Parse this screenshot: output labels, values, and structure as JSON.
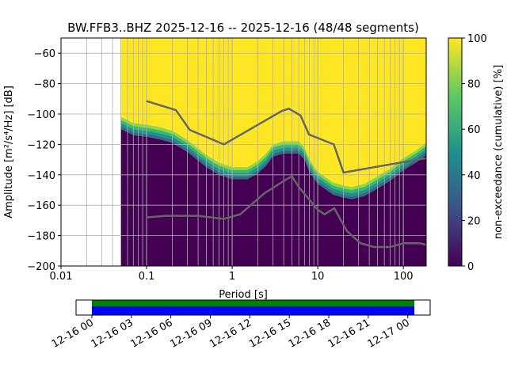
{
  "chart_data": {
    "type": "heatmap",
    "title": "BW.FFB3..BHZ   2025-12-16 -- 2025-12-16  (48/48 segments)",
    "xlabel": "Period [s]",
    "ylabel": "Amplitude [m²/s⁴/Hz] [dB]",
    "xscale": "log",
    "xlim": [
      0.01,
      185
    ],
    "ylim": [
      -200,
      -50
    ],
    "xticks": [
      {
        "v": 0.01,
        "label": "0.01"
      },
      {
        "v": 0.1,
        "label": "0.1"
      },
      {
        "v": 1,
        "label": "1"
      },
      {
        "v": 10,
        "label": "10"
      },
      {
        "v": 100,
        "label": "100"
      }
    ],
    "yticks": [
      -60,
      -80,
      -100,
      -120,
      -140,
      -160,
      -180,
      -200
    ],
    "grid": true,
    "density_start_period": 0.05,
    "density_boundary": {
      "periods": [
        0.05,
        0.055,
        0.07,
        0.1,
        0.15,
        0.2,
        0.3,
        0.5,
        0.7,
        1,
        1.5,
        2,
        2.5,
        3,
        4,
        5,
        6,
        7,
        8,
        10,
        12,
        15,
        20,
        25,
        35,
        50,
        70,
        100,
        140,
        185
      ],
      "db": [
        -104,
        -105,
        -108,
        -109,
        -111,
        -113,
        -119,
        -129,
        -134,
        -137,
        -137,
        -133,
        -128,
        -122,
        -120,
        -120,
        -120,
        -124,
        -132,
        -140,
        -143,
        -147,
        -149,
        -150,
        -148,
        -143,
        -138,
        -131,
        -126,
        -121
      ]
    },
    "noise_models": [
      {
        "name": "NHNM",
        "color": "#666666",
        "periods": [
          0.1,
          0.22,
          0.32,
          0.8,
          3.8,
          4.6,
          6.3,
          7.9,
          15.4,
          20,
          185
        ],
        "db": [
          -91.5,
          -97.4,
          -110.5,
          -120,
          -98,
          -96.5,
          -101,
          -113.5,
          -120,
          -138.5,
          -129
        ]
      },
      {
        "name": "NLNM",
        "color": "#666666",
        "periods": [
          0.1,
          0.17,
          0.4,
          0.8,
          1.24,
          2.4,
          4.3,
          5,
          6,
          10,
          12,
          15.6,
          21.9,
          31.6,
          45,
          70,
          101,
          154,
          185
        ],
        "db": [
          -168,
          -167,
          -167,
          -169,
          -166,
          -152,
          -143,
          -141,
          -148,
          -163,
          -166,
          -162,
          -177,
          -185,
          -187.5,
          -187.5,
          -185,
          -185,
          -186
        ]
      }
    ],
    "colorbar": {
      "label": "non-exceedance (cumulative) [%]",
      "ticks": [
        0,
        20,
        40,
        60,
        80,
        100
      ],
      "range": [
        0,
        100
      ],
      "colormap": "viridis"
    },
    "timeline": {
      "tick_labels": [
        "12-16 00",
        "12-16 03",
        "12-16 06",
        "12-16 09",
        "12-16 12",
        "12-16 15",
        "12-16 18",
        "12-16 21",
        "12-17 00"
      ],
      "data_start_hour": 0,
      "data_end_hour": 24.5,
      "range_hours": [
        -1.2,
        25.7
      ],
      "colors": {
        "top": "#008000",
        "bottom": "#0000ff"
      }
    }
  }
}
